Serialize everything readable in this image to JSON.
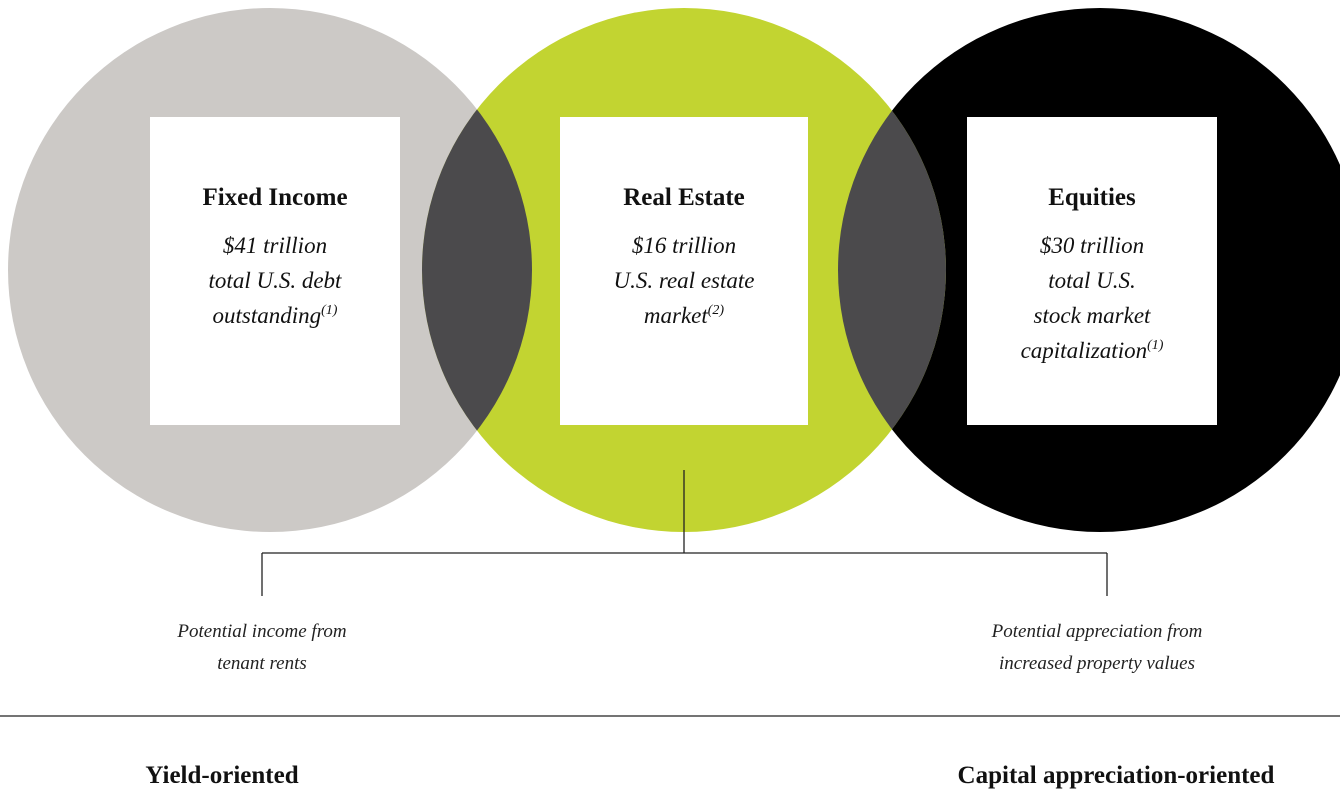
{
  "circles": [
    {
      "title": "Fixed Income",
      "lines": [
        "$41 trillion",
        "total U.S. debt",
        "outstanding"
      ],
      "footnote": "(1)"
    },
    {
      "title": "Real Estate",
      "lines": [
        "$16 trillion",
        "U.S. real estate",
        "market"
      ],
      "footnote": "(2)"
    },
    {
      "title": "Equities",
      "lines": [
        "$30 trillion",
        "total U.S.",
        "stock market",
        "capitalization"
      ],
      "footnote": "(1)"
    }
  ],
  "notes": [
    [
      "Potential income from",
      "tenant rents"
    ],
    [
      "Potential appreciation from",
      "increased property values"
    ]
  ],
  "bottom": [
    "Yield-oriented",
    "Capital appreciation-oriented"
  ]
}
